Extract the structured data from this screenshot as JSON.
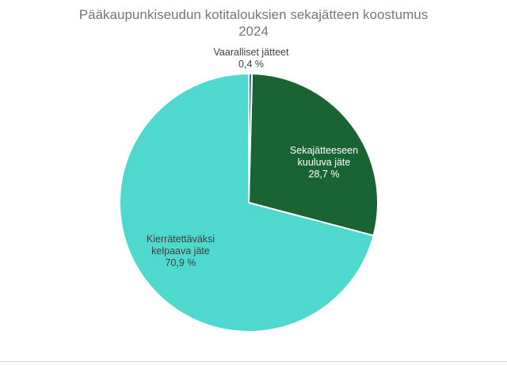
{
  "title": {
    "line1": "Pääkaupunkiseudun kotitalouksien sekajätteen koostumus",
    "line2": "2024"
  },
  "chart_data": {
    "type": "pie",
    "title": "Pääkaupunkiseudun kotitalouksien sekajätteen koostumus 2024",
    "unit": "%",
    "start_angle_deg": 0,
    "direction": "clockwise",
    "stroke_color": "#ffffff",
    "background_color": "#ffffff",
    "title_color": "#767676",
    "slices": [
      {
        "label": "Vaaralliset jätteet",
        "value": 0.4,
        "value_label": "0,4 %",
        "color": "#2F6D9F",
        "label_position": "outside-top",
        "label_color": "#3f3f3f"
      },
      {
        "label": "Sekajätteeseen kuuluva jäte",
        "value": 28.7,
        "value_label": "28,7 %",
        "color": "#1A6433",
        "label_position": "inside",
        "label_color": "#ffffff"
      },
      {
        "label": "Kierrätettäväksi kelpaava jäte",
        "value": 70.9,
        "value_label": "70,9 %",
        "color": "#4FD9CE",
        "label_position": "inside",
        "label_color": "#3f3f3f"
      }
    ]
  }
}
